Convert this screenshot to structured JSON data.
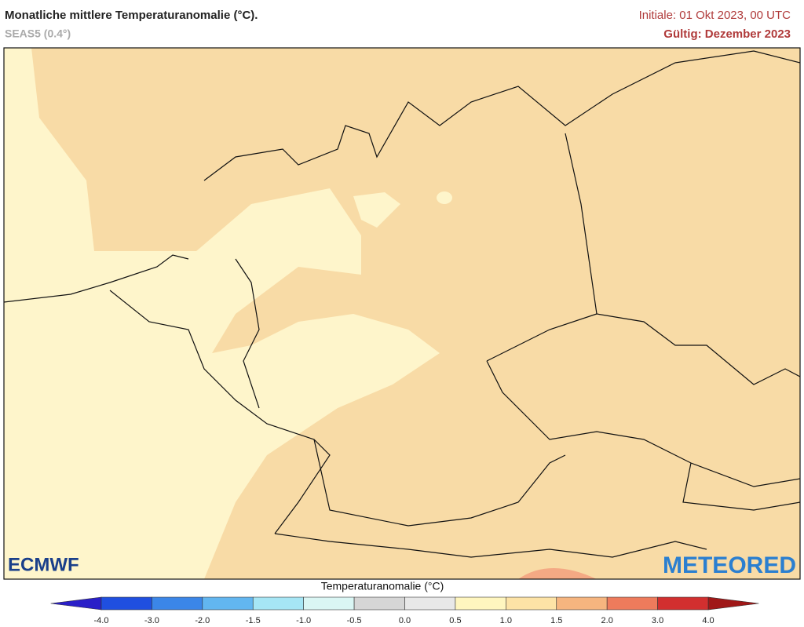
{
  "header": {
    "title": "Monatliche mittlere Temperaturanomalie (°C).",
    "model": "SEAS5 (0.4°)",
    "init": "Initiale: 01 Okt 2023, 00 UTC",
    "valid": "Gültig: Dezember 2023"
  },
  "map": {
    "logo_left": "ECMWF",
    "logo_right": "METEORED"
  },
  "legend": {
    "title": "Temperaturanomalie (°C)",
    "ticks": [
      "-4.0",
      "-3.0",
      "-2.0",
      "-1.5",
      "-1.0",
      "-0.5",
      "0.0",
      "0.5",
      "1.0",
      "1.5",
      "2.0",
      "3.0",
      "4.0"
    ],
    "colors": [
      "#1f4fe0",
      "#3b86e8",
      "#62b6f0",
      "#a6e6f5",
      "#daf6f4",
      "#d6d6d6",
      "#e8e8e8",
      "#fff6bf",
      "#fde3a6",
      "#f6b57f",
      "#ee7b5c",
      "#d22f2f"
    ],
    "under_color": "#2a1fc8",
    "over_color": "#a01818"
  }
}
